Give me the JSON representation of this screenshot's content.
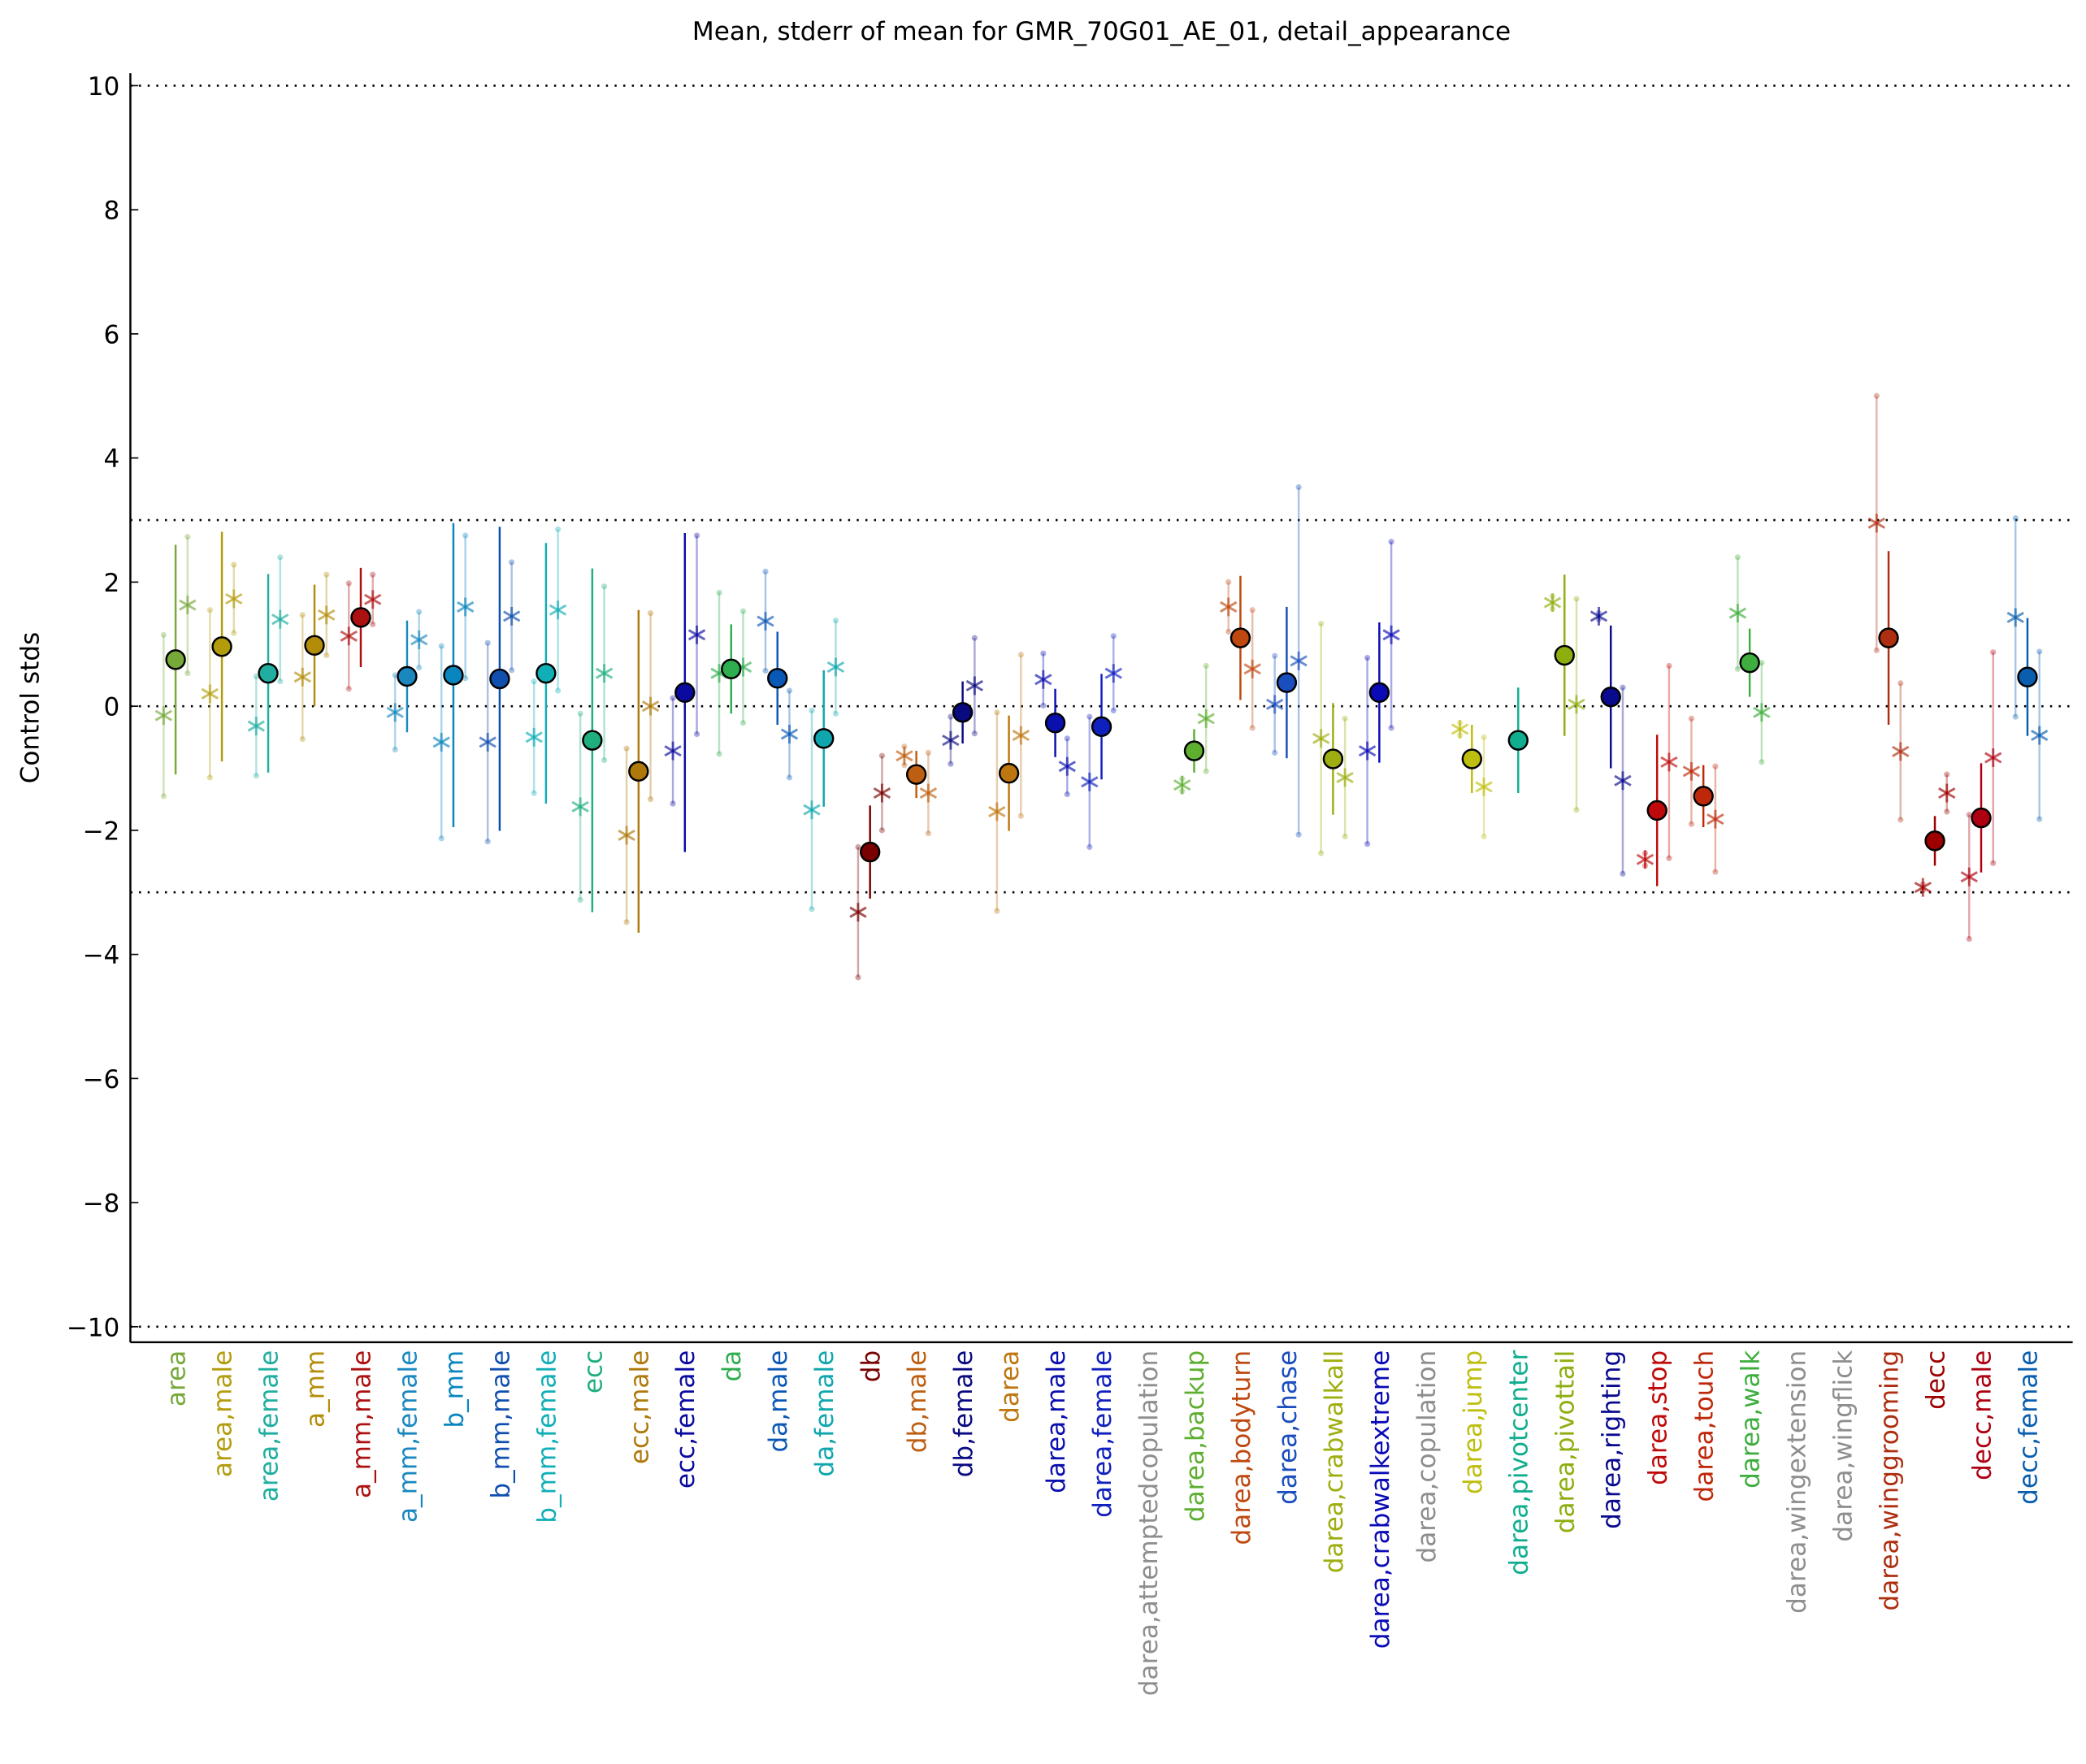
{
  "chart_data": {
    "type": "errorbar",
    "title": "Mean, stderr of mean for GMR_70G01_AE_01, detail_appearance",
    "ylabel": "Control stds",
    "categories": [
      "area",
      "area,male",
      "area,female",
      "a_mm",
      "a_mm,male",
      "a_mm,female",
      "b_mm",
      "b_mm,male",
      "b_mm,female",
      "ecc",
      "ecc,male",
      "ecc,female",
      "da",
      "da,male",
      "da,female",
      "db",
      "db,male",
      "db,female",
      "darea",
      "darea,male",
      "darea,female",
      "darea,attemptedcopulation",
      "darea,backup",
      "darea,bodyturn",
      "darea,chase",
      "darea,crabwalkall",
      "darea,crabwalkextreme",
      "darea,copulation",
      "darea,jump",
      "darea,pivotcenter",
      "darea,pivottail",
      "darea,righting",
      "darea,stop",
      "darea,touch",
      "darea,walk",
      "darea,wingextension",
      "darea,wingflick",
      "darea,winggrooming",
      "decc",
      "decc,male",
      "decc,female"
    ],
    "colors": [
      "#76a83a",
      "#b39c0c",
      "#1fae9f",
      "#b38d0a",
      "#ad1010",
      "#1a88bf",
      "#0a86bf",
      "#114fae",
      "#10aeb6",
      "#1fae7f",
      "#ae780a",
      "#0a0aa0",
      "#2fae4f",
      "#0a58b6",
      "#10a6ae",
      "#780000",
      "#be5e10",
      "#0a0a80",
      "#be7610",
      "#0a10ae",
      "#1020be",
      "#8e8e8e",
      "#5eae30",
      "#be4810",
      "#1a4ebe",
      "#9eae10",
      "#0a0ab6",
      "#8e8e8e",
      "#bebe10",
      "#10ae8e",
      "#8eae10",
      "#0a0a8e",
      "#be0a0a",
      "#be280a",
      "#3eae3e",
      "#8e8e8e",
      "#8e8e8e",
      "#ae2e10",
      "#9e0000",
      "#ae0010",
      "#0a5eae"
    ],
    "series": [
      {
        "marker": "circle",
        "values": [
          0.75,
          0.96,
          0.53,
          0.98,
          1.43,
          0.48,
          0.5,
          0.44,
          0.53,
          -0.55,
          -1.05,
          0.22,
          0.6,
          0.45,
          -0.52,
          -2.35,
          -1.1,
          -0.1,
          -1.08,
          -0.27,
          -0.33,
          null,
          -0.72,
          1.1,
          0.38,
          -0.85,
          0.22,
          null,
          -0.85,
          -0.55,
          0.82,
          0.15,
          -1.68,
          -1.45,
          0.7,
          null,
          null,
          1.1,
          -2.17,
          -1.8,
          0.47
        ],
        "errors": [
          1.85,
          1.85,
          1.6,
          0.98,
          0.8,
          0.9,
          2.45,
          2.45,
          2.1,
          2.77,
          2.6,
          2.57,
          0.72,
          0.75,
          1.1,
          0.75,
          0.38,
          0.5,
          0.93,
          0.55,
          0.85,
          null,
          0.35,
          1.0,
          1.22,
          0.9,
          1.13,
          null,
          0.55,
          0.85,
          1.3,
          1.15,
          1.22,
          0.5,
          0.55,
          null,
          null,
          1.4,
          0.4,
          0.88,
          0.95
        ]
      },
      {
        "marker": "star",
        "values": [
          -0.15,
          0.2,
          -0.32,
          0.47,
          1.13,
          -0.1,
          -0.58,
          -0.58,
          -0.5,
          -1.62,
          -2.08,
          -0.72,
          0.53,
          1.37,
          -1.67,
          -3.32,
          -0.8,
          -0.55,
          -1.7,
          0.43,
          -1.22,
          null,
          -1.27,
          1.6,
          0.03,
          -0.52,
          -0.72,
          null,
          -0.37,
          null,
          1.67,
          1.45,
          -2.47,
          -1.05,
          1.5,
          null,
          null,
          2.95,
          -2.92,
          -2.75,
          1.43
        ],
        "errors": [
          1.3,
          1.35,
          0.8,
          1.0,
          0.85,
          0.6,
          1.55,
          1.6,
          0.9,
          1.5,
          1.4,
          0.85,
          1.3,
          0.8,
          1.6,
          1.05,
          0.15,
          0.38,
          1.6,
          0.42,
          1.05,
          null,
          0.1,
          0.4,
          0.78,
          1.85,
          1.5,
          null,
          0.1,
          null,
          0.1,
          0.05,
          0.1,
          0.85,
          0.9,
          null,
          null,
          2.05,
          0.05,
          1.0,
          1.6
        ]
      },
      {
        "marker": "star",
        "values": [
          1.63,
          1.73,
          1.4,
          1.47,
          1.72,
          1.07,
          1.6,
          1.45,
          1.55,
          0.53,
          0.0,
          1.15,
          0.63,
          -0.45,
          0.63,
          -1.4,
          -1.4,
          0.33,
          -0.47,
          -0.97,
          0.53,
          null,
          -0.2,
          0.6,
          0.73,
          -1.15,
          1.15,
          null,
          -1.3,
          null,
          0.03,
          -1.2,
          -0.9,
          -1.82,
          -0.1,
          null,
          null,
          -0.73,
          -1.4,
          -0.83,
          -0.47
        ],
        "errors": [
          1.1,
          0.55,
          1.0,
          0.65,
          0.4,
          0.45,
          1.15,
          0.87,
          1.3,
          1.4,
          1.5,
          1.6,
          0.9,
          0.7,
          0.75,
          0.6,
          0.65,
          0.77,
          1.3,
          0.45,
          0.6,
          null,
          0.85,
          0.95,
          2.8,
          0.95,
          1.5,
          null,
          0.8,
          null,
          1.7,
          1.5,
          1.55,
          0.85,
          0.8,
          null,
          null,
          1.1,
          0.3,
          1.7,
          1.35
        ]
      }
    ],
    "ylim": [
      -10.25,
      10.2
    ],
    "yticks": [
      {
        "value": -10,
        "label": "−10"
      },
      {
        "value": -8,
        "label": "−8"
      },
      {
        "value": -6,
        "label": "−6"
      },
      {
        "value": -4,
        "label": "−4"
      },
      {
        "value": -2,
        "label": "−2"
      },
      0,
      2,
      4,
      6,
      8,
      10
    ],
    "hlines": [
      -10,
      -3,
      0,
      3,
      10
    ]
  }
}
